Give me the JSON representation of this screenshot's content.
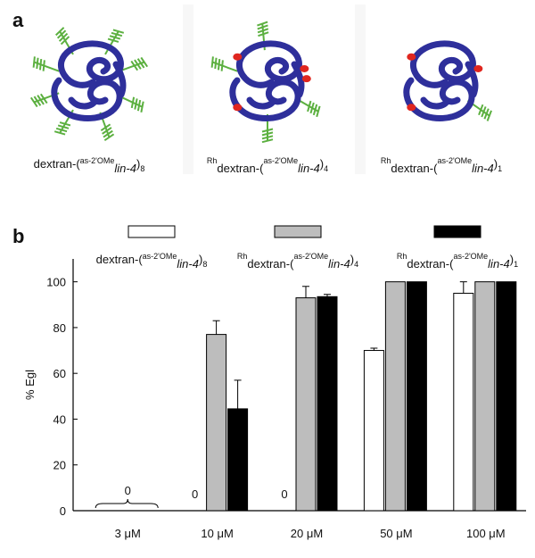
{
  "panel_labels": [
    "a",
    "b"
  ],
  "chart_data": {
    "type": "bar",
    "y_label": "% Egl",
    "categories": [
      "3 μM",
      "10 μM",
      "20 μM",
      "50 μM",
      "100 μM"
    ],
    "ylim": [
      0,
      110
    ],
    "yticks": [
      0,
      20,
      40,
      60,
      80,
      100
    ],
    "series": [
      {
        "name": {
          "text": "dextran-(",
          "sup": "as-2'OMe",
          "italic": "lin-4",
          "close": ")",
          "sub": "8"
        },
        "color": "#ffffff",
        "values": [
          0,
          0,
          0,
          70,
          95
        ],
        "errors": [
          null,
          null,
          null,
          1,
          5
        ],
        "value_labels": [
          "0",
          "0",
          "0",
          null,
          null
        ]
      },
      {
        "name": {
          "prefix": "Rh",
          "text": "dextran-(",
          "sup": "as-2'OMe",
          "italic": "lin-4",
          "close": ")",
          "sub": "4"
        },
        "color": "#bdbdbd",
        "values": [
          0,
          77,
          93,
          100,
          100
        ],
        "errors": [
          null,
          6,
          5,
          null,
          null
        ]
      },
      {
        "name": {
          "prefix": "Rh",
          "text": "dextran-(",
          "sup": "as-2'OMe",
          "italic": "lin-4",
          "close": ")",
          "sub": "1"
        },
        "color": "#000000",
        "values": [
          0,
          44.5,
          93.5,
          100,
          100
        ],
        "errors": [
          null,
          12.5,
          1,
          null,
          null
        ]
      }
    ]
  }
}
